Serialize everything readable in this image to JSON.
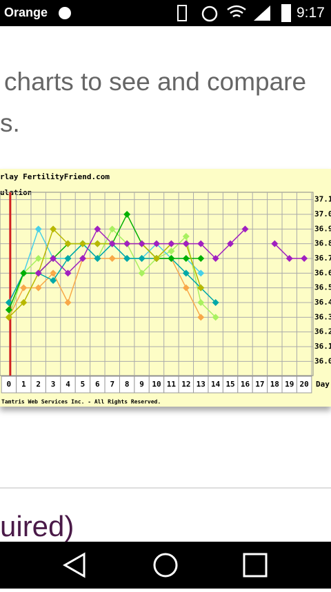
{
  "status_bar": {
    "carrier": "Orange",
    "time": "9:17"
  },
  "article": {
    "lines": [
      "charts to see and compare",
      "s."
    ],
    "heading": "uired)"
  },
  "chart": {
    "type": "line",
    "title": "rlay FertilityFriend.com",
    "subtitle": "ulation",
    "x_label": "Day",
    "footer": "Tamtris Web Services Inc. - All Rights Reserved.",
    "x": [
      0,
      1,
      2,
      3,
      4,
      5,
      6,
      7,
      8,
      9,
      10,
      11,
      12,
      13,
      14,
      15,
      16,
      17,
      18,
      19,
      20
    ],
    "xlim": [
      -0.6,
      20.6
    ],
    "ylim": [
      35.95,
      37.15
    ],
    "yticks": [
      37.1,
      {
        "value": 37,
        "label": "37.0"
      },
      36.9,
      36.8,
      36.7,
      36.6,
      36.5,
      36.4,
      36.3,
      36.2,
      36.1,
      {
        "value": 36,
        "label": "36.0"
      }
    ],
    "grid": true,
    "series": [
      {
        "color": "#f8a848",
        "values": [
          36.3,
          36.5,
          36.5,
          36.6,
          36.4,
          36.7,
          36.7,
          36.7,
          36.7,
          36.7,
          36.7,
          36.7,
          36.5,
          36.3,
          null,
          null,
          null,
          null,
          null,
          null,
          null
        ]
      },
      {
        "color": "#a8f060",
        "values": [
          36.3,
          36.6,
          36.7,
          36.7,
          36.7,
          36.8,
          36.7,
          36.9,
          36.8,
          36.6,
          36.7,
          36.75,
          36.85,
          36.4,
          36.3,
          null,
          null,
          null,
          null,
          null,
          null
        ]
      },
      {
        "color": "#48d0e8",
        "values": [
          36.4,
          36.6,
          36.9,
          36.7,
          36.7,
          36.8,
          36.7,
          36.8,
          36.7,
          36.7,
          36.8,
          36.7,
          36.7,
          36.6,
          null,
          null,
          null,
          null,
          null,
          null,
          null
        ]
      },
      {
        "color": "#00a8a8",
        "values": [
          36.4,
          36.6,
          36.6,
          36.55,
          36.7,
          36.8,
          36.7,
          36.8,
          36.7,
          36.7,
          36.7,
          36.7,
          36.6,
          36.5,
          36.4,
          null,
          null,
          null,
          null,
          null,
          null
        ]
      },
      {
        "color": "#00b000",
        "values": [
          36.35,
          36.6,
          36.6,
          36.7,
          36.8,
          36.8,
          36.8,
          36.8,
          37.0,
          36.8,
          36.7,
          36.7,
          36.7,
          36.7,
          null,
          null,
          null,
          null,
          null,
          null,
          null
        ]
      },
      {
        "color": "#b8b800",
        "values": [
          36.3,
          36.4,
          36.6,
          36.9,
          36.8,
          36.8,
          36.8,
          36.8,
          36.8,
          36.8,
          36.7,
          36.8,
          36.8,
          36.5,
          null,
          null,
          null,
          null,
          null,
          null,
          null
        ]
      },
      {
        "color": "#a020c0",
        "values": [
          null,
          null,
          36.6,
          36.7,
          36.6,
          36.7,
          36.9,
          36.8,
          36.8,
          36.8,
          36.8,
          36.8,
          36.8,
          36.8,
          36.7,
          36.8,
          36.9,
          null,
          36.8,
          36.7,
          36.7
        ]
      }
    ]
  }
}
